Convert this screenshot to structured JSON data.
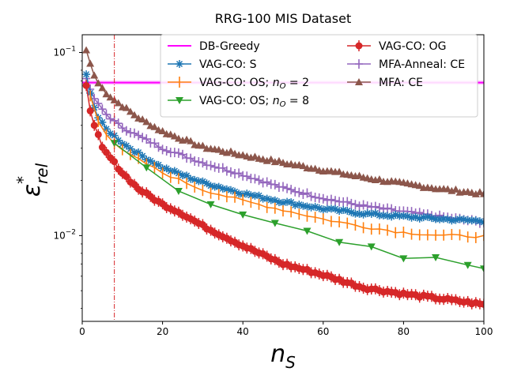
{
  "chart_data": {
    "type": "line",
    "title": "RRG-100 MIS Dataset",
    "xlabel_base": "n",
    "xlabel_sub": "S",
    "ylabel_base": "ε",
    "ylabel_sup": "*",
    "ylabel_sub": "rel",
    "xlim": [
      0,
      100
    ],
    "ylim": [
      0.0034,
      0.125
    ],
    "yscale": "log",
    "x_ticks": [
      0,
      20,
      40,
      60,
      80,
      100
    ],
    "x_tick_labels": [
      "0",
      "20",
      "40",
      "60",
      "80",
      "100"
    ],
    "y_ticks": [
      0.01,
      0.1
    ],
    "y_tick_labels": [
      "10^-2",
      "10^-1"
    ],
    "vline_x": 8,
    "legend": [
      {
        "label": "DB-Greedy",
        "series": "db"
      },
      {
        "label": "VAG-CO: S",
        "series": "s"
      },
      {
        "label": "VAG-CO: OS; n_O = 2",
        "series": "os2"
      },
      {
        "label": "VAG-CO: OS; n_O = 8",
        "series": "os8"
      },
      {
        "label": "VAG-CO: OG",
        "series": "og"
      },
      {
        "label": "MFA-Anneal: CE",
        "series": "mfaa"
      },
      {
        "label": "MFA: CE",
        "series": "mfa"
      }
    ],
    "legend_text": {
      "db": "DB-Greedy",
      "s": "VAG-CO: S",
      "os2_pre": "VAG-CO: OS; ",
      "os2_n": "n",
      "os2_sub": "O",
      "os2_post": " = 2",
      "os8_pre": "VAG-CO: OS; ",
      "os8_n": "n",
      "os8_sub": "O",
      "os8_post": " = 8",
      "og": "VAG-CO: OG",
      "mfaa": "MFA-Anneal: CE",
      "mfa": "MFA: CE"
    },
    "series": [
      {
        "key": "db",
        "name": "DB-Greedy",
        "color": "#ff00ff",
        "marker": "none",
        "hline": 0.0685
      },
      {
        "key": "mfa",
        "name": "MFA: CE",
        "color": "#8c564b",
        "marker": "triangle-up",
        "every": 1,
        "anchors": [
          [
            1,
            0.103
          ],
          [
            2,
            0.087
          ],
          [
            3,
            0.075
          ],
          [
            4,
            0.068
          ],
          [
            6,
            0.06
          ],
          [
            8,
            0.055
          ],
          [
            10,
            0.051
          ],
          [
            14,
            0.044
          ],
          [
            20,
            0.037
          ],
          [
            30,
            0.0305
          ],
          [
            40,
            0.0275
          ],
          [
            50,
            0.025
          ],
          [
            60,
            0.0228
          ],
          [
            70,
            0.0208
          ],
          [
            80,
            0.0192
          ],
          [
            90,
            0.0179
          ],
          [
            100,
            0.0169
          ]
        ]
      },
      {
        "key": "mfaa",
        "name": "MFA-Anneal: CE",
        "color": "#9467bd",
        "marker": "plus",
        "every": 1,
        "anchors": [
          [
            1,
            0.072
          ],
          [
            2,
            0.063
          ],
          [
            3,
            0.056
          ],
          [
            4,
            0.052
          ],
          [
            6,
            0.046
          ],
          [
            8,
            0.042
          ],
          [
            10,
            0.039
          ],
          [
            14,
            0.035
          ],
          [
            20,
            0.03
          ],
          [
            30,
            0.025
          ],
          [
            40,
            0.0215
          ],
          [
            50,
            0.0182
          ],
          [
            60,
            0.016
          ],
          [
            70,
            0.0145
          ],
          [
            80,
            0.0135
          ],
          [
            90,
            0.0126
          ],
          [
            100,
            0.0118
          ]
        ]
      },
      {
        "key": "s",
        "name": "VAG-CO: S",
        "color": "#1f77b4",
        "marker": "star",
        "every": 1,
        "anchors": [
          [
            1,
            0.076
          ],
          [
            2,
            0.06
          ],
          [
            3,
            0.05
          ],
          [
            4,
            0.044
          ],
          [
            6,
            0.038
          ],
          [
            8,
            0.035
          ],
          [
            10,
            0.032
          ],
          [
            14,
            0.028
          ],
          [
            20,
            0.0235
          ],
          [
            30,
            0.0195
          ],
          [
            40,
            0.017
          ],
          [
            50,
            0.0153
          ],
          [
            60,
            0.014
          ],
          [
            70,
            0.0132
          ],
          [
            80,
            0.0127
          ],
          [
            90,
            0.0123
          ],
          [
            100,
            0.012
          ]
        ]
      },
      {
        "key": "os2",
        "name": "VAG-CO: OS; n_O = 2",
        "color": "#ff7f0e",
        "marker": "vbar",
        "every": 2,
        "anchors": [
          [
            2,
            0.058
          ],
          [
            4,
            0.042
          ],
          [
            6,
            0.036
          ],
          [
            8,
            0.032
          ],
          [
            10,
            0.029
          ],
          [
            14,
            0.026
          ],
          [
            20,
            0.022
          ],
          [
            30,
            0.0178
          ],
          [
            40,
            0.0155
          ],
          [
            50,
            0.0138
          ],
          [
            60,
            0.0123
          ],
          [
            70,
            0.0112
          ],
          [
            80,
            0.0104
          ],
          [
            90,
            0.01
          ],
          [
            100,
            0.0099
          ]
        ]
      },
      {
        "key": "os8",
        "name": "VAG-CO: OS; n_O = 8",
        "color": "#2ca02c",
        "marker": "triangle-down",
        "every": 8,
        "points": [
          [
            8,
            0.032
          ],
          [
            16,
            0.0235
          ],
          [
            24,
            0.0175
          ],
          [
            32,
            0.0148
          ],
          [
            40,
            0.013
          ],
          [
            48,
            0.0117
          ],
          [
            56,
            0.0106
          ],
          [
            64,
            0.0092
          ],
          [
            72,
            0.0087
          ],
          [
            80,
            0.0075
          ],
          [
            88,
            0.0076
          ],
          [
            96,
            0.0069
          ],
          [
            100,
            0.0066
          ]
        ]
      },
      {
        "key": "og",
        "name": "VAG-CO: OG",
        "color": "#d62728",
        "marker": "circle-errbar",
        "every": 1,
        "anchors": [
          [
            1,
            0.066
          ],
          [
            2,
            0.048
          ],
          [
            3,
            0.04
          ],
          [
            4,
            0.035
          ],
          [
            5,
            0.03
          ],
          [
            8,
            0.025
          ],
          [
            10,
            0.022
          ],
          [
            14,
            0.018
          ],
          [
            20,
            0.0148
          ],
          [
            24,
            0.0135
          ],
          [
            30,
            0.0113
          ],
          [
            40,
            0.0088
          ],
          [
            50,
            0.007
          ],
          [
            60,
            0.0061
          ],
          [
            70,
            0.0052
          ],
          [
            80,
            0.0048
          ],
          [
            90,
            0.0045
          ],
          [
            100,
            0.0042
          ]
        ]
      }
    ]
  }
}
